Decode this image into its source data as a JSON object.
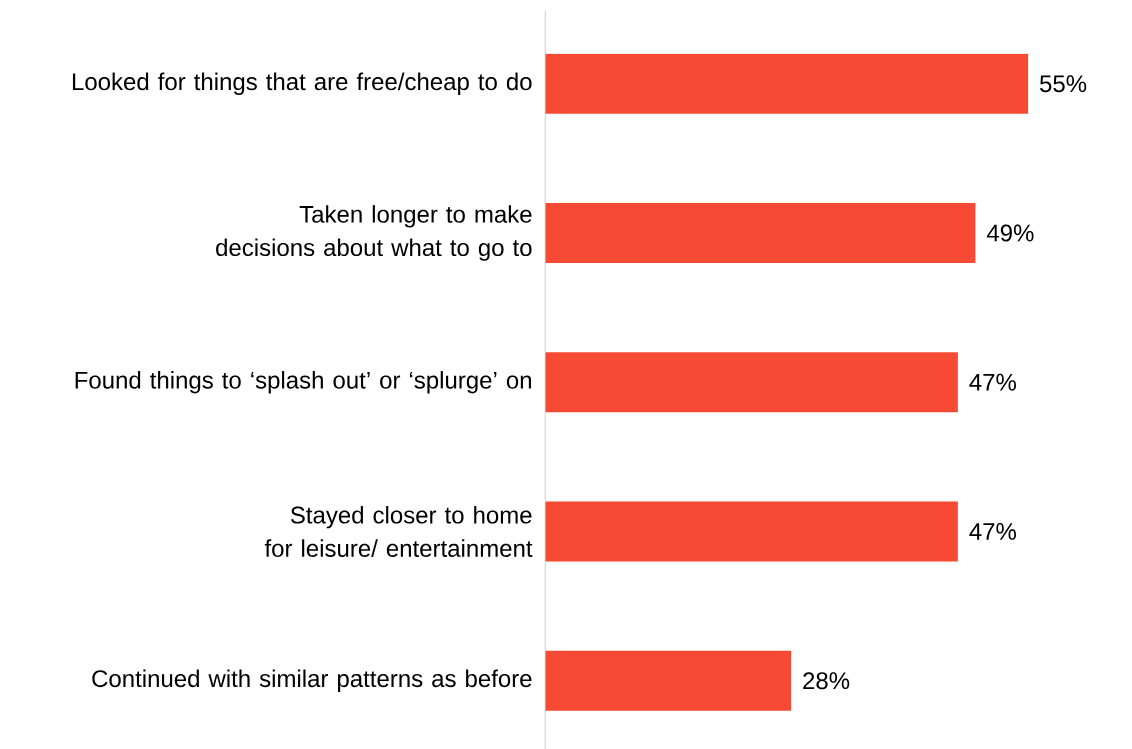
{
  "chart_data": {
    "type": "bar",
    "orientation": "horizontal",
    "categories": [
      "Looked for things that are free/cheap to do",
      "Taken longer to make decisions about what to go to",
      "Found things to ‘splash out’ or ‘splurge’ on",
      "Stayed closer to home for leisure/ entertainment",
      "Continued with similar patterns as before"
    ],
    "values": [
      55,
      49,
      47,
      47,
      28
    ],
    "value_labels": [
      "55%",
      "49%",
      "47%",
      "47%",
      "28%"
    ],
    "color": "#f64a35"
  }
}
